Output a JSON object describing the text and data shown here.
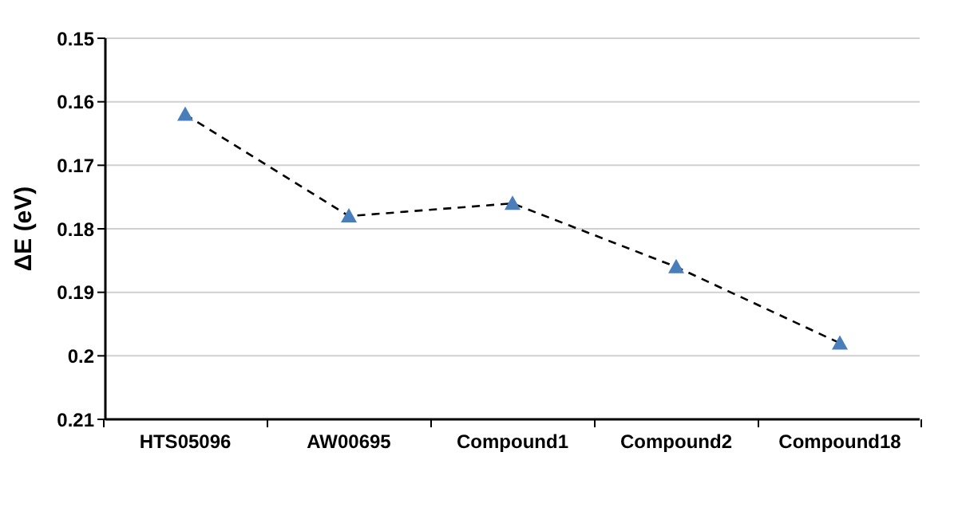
{
  "chart_data": {
    "type": "line",
    "ylabel": "ΔE (eV)",
    "categories": [
      "HTS05096",
      "AW00695",
      "Compound1",
      "Compound2",
      "Compound18"
    ],
    "series": [
      {
        "color": "#4a7ebb",
        "values": [
          0.162,
          0.178,
          0.176,
          0.186,
          0.198
        ]
      }
    ],
    "ylim": [
      0.21,
      0.15
    ],
    "yticks": [
      0.15,
      0.16,
      0.17,
      0.18,
      0.19,
      0.2,
      0.21
    ],
    "grid": "y",
    "legend": false,
    "marker": "triangle",
    "line_style": "dashed"
  }
}
